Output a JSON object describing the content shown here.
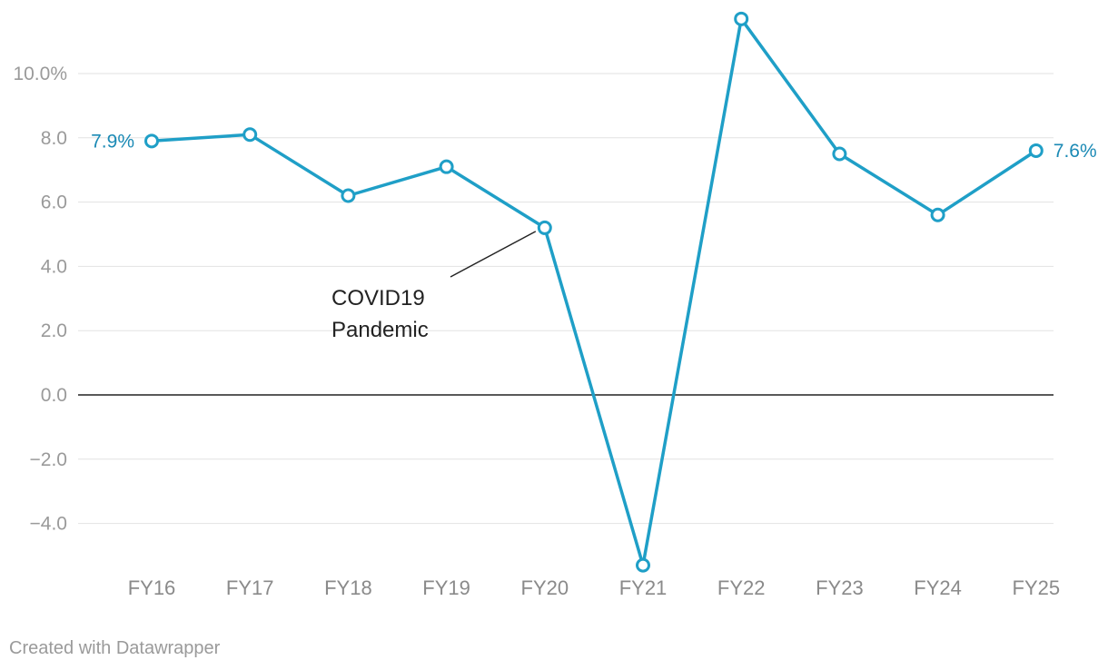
{
  "chart_data": {
    "type": "line",
    "categories": [
      "FY16",
      "FY17",
      "FY18",
      "FY19",
      "FY20",
      "FY21",
      "FY22",
      "FY23",
      "FY24",
      "FY25"
    ],
    "series": [
      {
        "values": [
          7.9,
          8.1,
          6.2,
          7.1,
          5.2,
          -5.3,
          11.7,
          7.5,
          5.6,
          7.6
        ]
      }
    ],
    "ylim": [
      -5.3,
      11.7
    ],
    "yticks": [
      {
        "value": 10,
        "label": "10.0%"
      },
      {
        "value": 8,
        "label": "8.0"
      },
      {
        "value": 6,
        "label": "6.0"
      },
      {
        "value": 4,
        "label": "4.0"
      },
      {
        "value": 2,
        "label": "2.0"
      },
      {
        "value": 0,
        "label": "0.0"
      },
      {
        "value": -2,
        "label": "−2.0"
      },
      {
        "value": -4,
        "label": "−4.0"
      }
    ],
    "data_labels": [
      {
        "index": 0,
        "text": "7.9%",
        "side": "left"
      },
      {
        "index": 9,
        "text": "7.6%",
        "side": "right"
      }
    ],
    "annotations": [
      {
        "index": 4,
        "lines": [
          "COVID19",
          "Pandemic"
        ]
      }
    ],
    "grid": true,
    "colors": {
      "line": "#1f9fc7",
      "label": "#1b8ab5"
    }
  },
  "footer": {
    "credit": "Created with Datawrapper"
  }
}
